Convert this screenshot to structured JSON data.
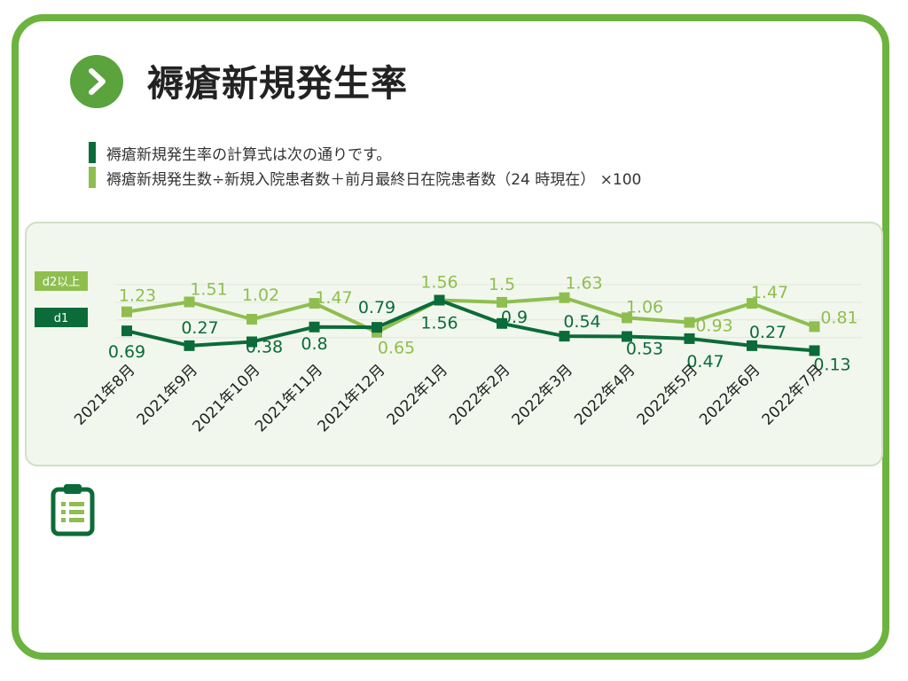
{
  "page": {
    "title": "褥瘡新規発生率",
    "formula_line1": "褥瘡新規発生率の計算式は次の通りです。",
    "formula_line2": "褥瘡新規発生数÷新規入院患者数＋前月最終日在院患者数（24 時現在） ×100"
  },
  "colors": {
    "frame": "#6db33f",
    "accent_dark": "#0b6b39",
    "accent_light": "#8fbe4f",
    "chart_bg": "#f2f7ee"
  },
  "icons": {
    "nav": "chevron-right-icon",
    "footer": "clipboard-icon"
  },
  "chart_data": {
    "type": "line",
    "categories": [
      "2021年8月",
      "2021年9月",
      "2021年10月",
      "2021年11月",
      "2021年12月",
      "2022年1月",
      "2022年2月",
      "2022年3月",
      "2022年4月",
      "2022年5月",
      "2022年6月",
      "2022年7月"
    ],
    "series": [
      {
        "name": "d2以上",
        "color": "#8fbe4f",
        "values": [
          1.23,
          1.51,
          1.02,
          1.47,
          0.65,
          1.56,
          1.5,
          1.63,
          1.06,
          0.93,
          1.47,
          0.81
        ],
        "labels": [
          "1.23",
          "1.51",
          "1.02",
          "1.47",
          "0.65",
          "1.56",
          "1.5",
          "1.63",
          "1.06",
          "0.93",
          "1.47",
          "0.81"
        ]
      },
      {
        "name": "d1",
        "color": "#0b6b39",
        "values": [
          0.69,
          0.27,
          0.38,
          0.8,
          0.79,
          1.56,
          0.9,
          0.54,
          0.53,
          0.47,
          0.27,
          0.13
        ],
        "labels": [
          "0.69",
          "0.27",
          "0.38",
          "0.8",
          "0.79",
          "1.56",
          "0.9",
          "0.54",
          "0.53",
          "0.47",
          "0.27",
          "0.13"
        ]
      }
    ],
    "legend": "left",
    "grid": true,
    "ylim": [
      0,
      2
    ]
  }
}
